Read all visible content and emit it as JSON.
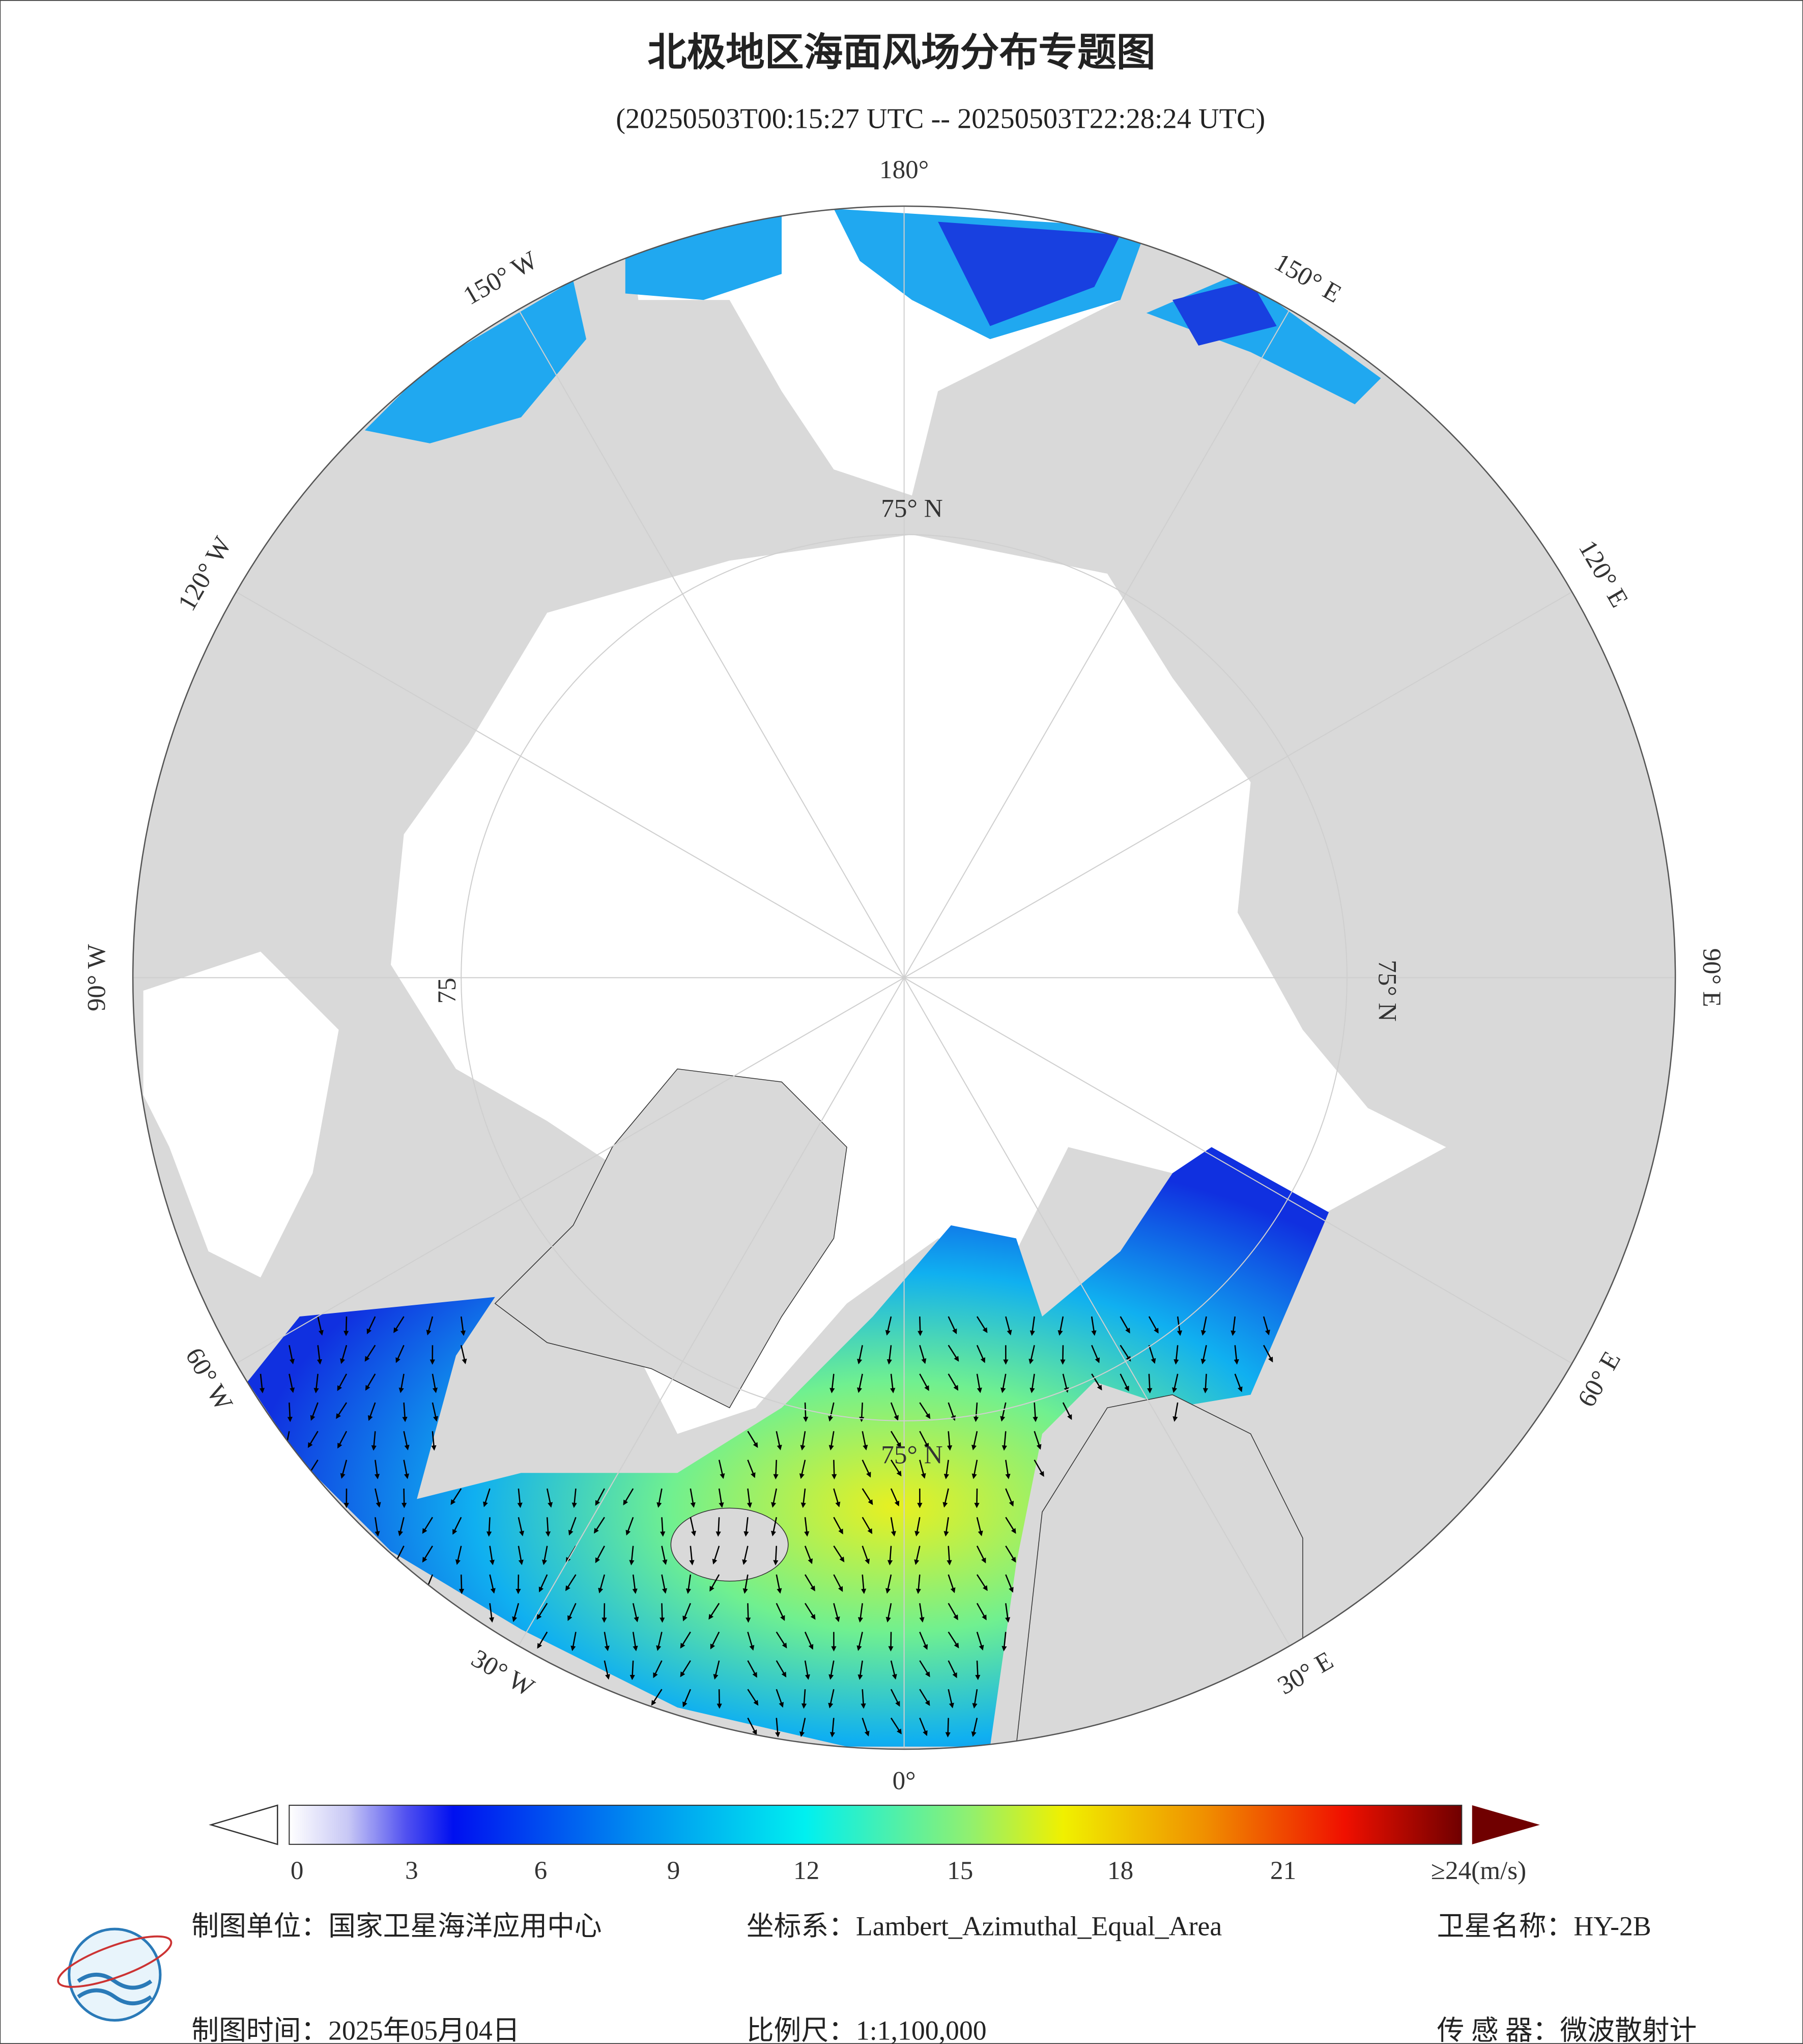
{
  "header": {
    "title": "北极地区海面风场分布专题图",
    "subtitle": "(20250503T00:15:27 UTC -- 20250503T22:28:24 UTC)"
  },
  "map": {
    "meridian_labels": [
      "180°",
      "150° E",
      "120° E",
      "90° E",
      "60° E",
      "30° E",
      "0°",
      "30° W",
      "60° W",
      "90° W",
      "120° W",
      "150° W"
    ],
    "parallel_labels": [
      "75° N",
      "75° N",
      "75° N",
      "75"
    ]
  },
  "colorbar": {
    "ticks": [
      0,
      3,
      6,
      9,
      12,
      15,
      18,
      21,
      {
        "value": 24,
        "label": "≥24(m/s)"
      }
    ]
  },
  "footer": {
    "unit": "制图单位：国家卫星海洋应用中心",
    "crs": "坐标系：Lambert_Azimuthal_Equal_Area",
    "satellite": "卫星名称：HY-2B",
    "date": "制图时间：2025年05月04日",
    "scale": "比例尺：1:1,100,000",
    "sensor": "传 感 器：微波散射计"
  }
}
